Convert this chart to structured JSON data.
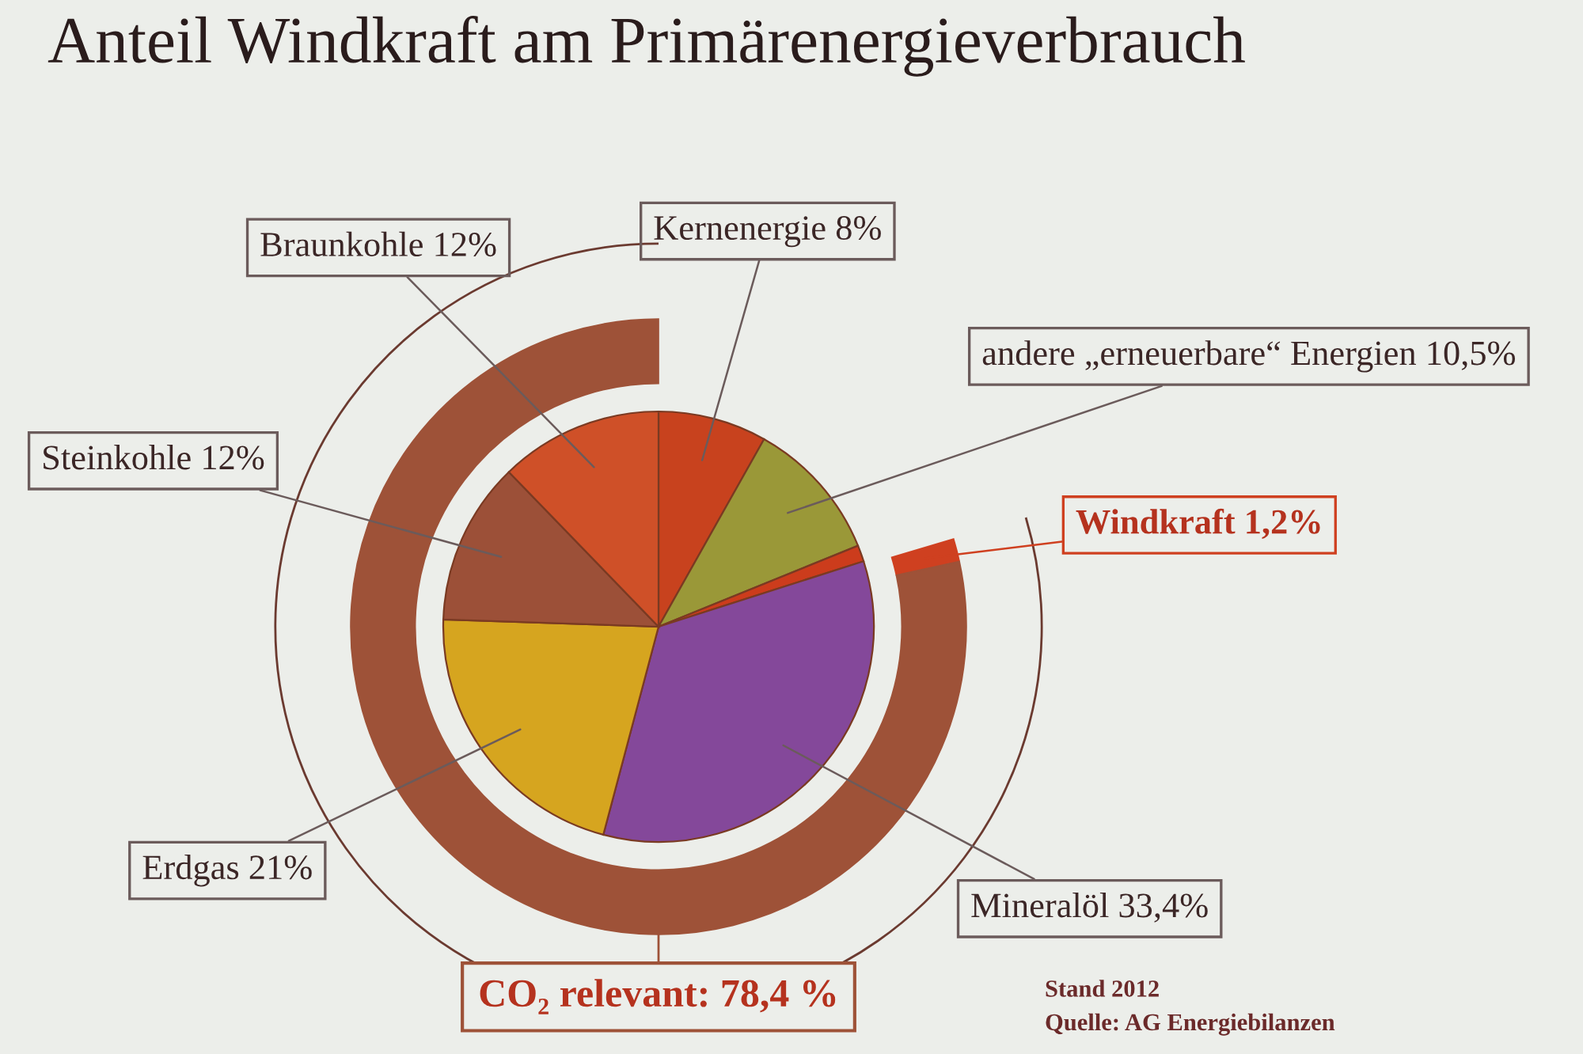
{
  "chart_data": {
    "type": "pie",
    "title": "Anteil Windkraft am Primärenergieverbrauch",
    "categories": [
      "Kernenergie",
      "andere „erneuerbare“ Energien",
      "Windkraft",
      "Mineralöl",
      "Erdgas",
      "Steinkohle",
      "Braunkohle"
    ],
    "series": [
      {
        "values": [
          8,
          10.5,
          1.2,
          33.4,
          21,
          12,
          12
        ],
        "value_labels": [
          "8%",
          "10,5%",
          null,
          "33,4%",
          "21%",
          "12%",
          "12%"
        ],
        "colors": [
          "#c8421e",
          "#9a9838",
          "#cc3c1c",
          "#84489a",
          "#d6a51f",
          "#9c5038",
          "#cf5028"
        ]
      },
      {
        "type": "donut",
        "name": "CO₂ relevant:",
        "values": [
          null,
          null,
          1.2,
          78.4,
          null,
          null,
          null
        ],
        "value_labels": [
          null,
          null,
          "1,2%",
          "78,4 %",
          null,
          null,
          null
        ],
        "colors": [
          null,
          null,
          "#cf4020",
          "#9e5238",
          null,
          null,
          null
        ]
      }
    ],
    "annotations": [
      "Stand 2012",
      "Quelle: AG Energiebilanzen"
    ]
  }
}
